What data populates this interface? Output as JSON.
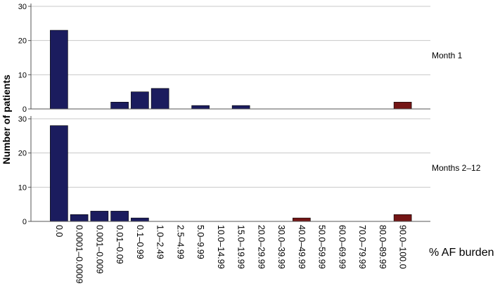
{
  "chart_data": {
    "type": "bar",
    "ylabel": "Number of patients",
    "xlabel": "% AF burden",
    "categories": [
      "0.0",
      "0.0001–0.0009",
      "0.001–0.009",
      "0.01–0.09",
      "0.1–0.99",
      "1.0–2.49",
      "2.5–4.99",
      "5.0–9.99",
      "10.0–14.99",
      "15.0–19.99",
      "20.0–29.99",
      "30.0–39.99",
      "40.0–49.99",
      "50.0–59.99",
      "60.0–69.99",
      "70.0–79.99",
      "80.0–89.99",
      "90.0–100.0"
    ],
    "colors": {
      "primary": "#1b1c5e",
      "highlight": "#741515",
      "grid": "#c8c8c8",
      "axis": "#555555"
    },
    "panels": [
      {
        "label": "Month 1",
        "ylim": [
          0,
          30
        ],
        "yticks": [
          0,
          10,
          20,
          30
        ],
        "values": [
          23,
          0,
          0,
          2,
          5,
          6,
          0,
          1,
          0,
          1,
          0,
          0,
          0,
          0,
          0,
          0,
          0,
          2
        ],
        "bar_colors": [
          "primary",
          "primary",
          "primary",
          "primary",
          "primary",
          "primary",
          "primary",
          "primary",
          "primary",
          "primary",
          "primary",
          "primary",
          "primary",
          "primary",
          "primary",
          "primary",
          "primary",
          "highlight"
        ]
      },
      {
        "label": "Months 2–12",
        "ylim": [
          0,
          30
        ],
        "yticks": [
          0,
          10,
          20,
          30
        ],
        "values": [
          28,
          2,
          3,
          3,
          1,
          0,
          0,
          0,
          0,
          0,
          0,
          0,
          1,
          0,
          0,
          0,
          0,
          2
        ],
        "bar_colors": [
          "primary",
          "primary",
          "primary",
          "primary",
          "primary",
          "primary",
          "primary",
          "primary",
          "primary",
          "primary",
          "primary",
          "primary",
          "highlight",
          "primary",
          "primary",
          "primary",
          "primary",
          "highlight"
        ]
      }
    ],
    "grid": true
  }
}
